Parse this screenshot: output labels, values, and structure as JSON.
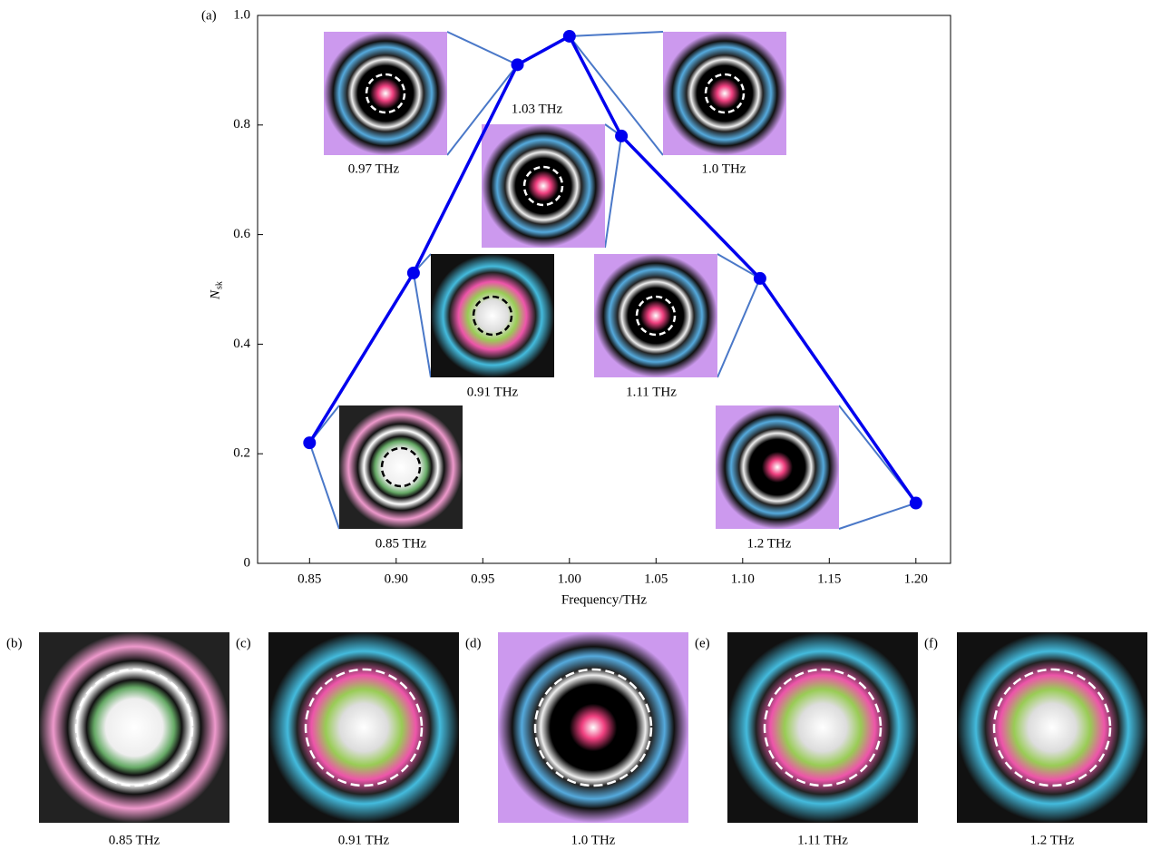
{
  "chart_data": {
    "type": "line",
    "panel_label": "(a)",
    "x_label": "Frequency/THz",
    "y_label": "N",
    "y_label_sub": "sk",
    "x": [
      0.85,
      0.91,
      0.97,
      1.0,
      1.03,
      1.11,
      1.2
    ],
    "series": [
      {
        "color": "#0000ee",
        "values": [
          0.22,
          0.53,
          0.91,
          0.962,
          0.78,
          0.52,
          0.11
        ]
      }
    ],
    "xlim": [
      0.82,
      1.22
    ],
    "xticks": [
      0.85,
      {
        "value": 0.9,
        "label": "0.90"
      },
      0.95,
      {
        "value": 1.0,
        "label": "1.00"
      },
      1.05,
      {
        "value": 1.1,
        "label": "1.10"
      },
      1.15,
      {
        "value": 1.2,
        "label": "1.20"
      }
    ],
    "ylim": [
      0,
      1
    ],
    "yticks": [
      0,
      0.2,
      0.4,
      0.6,
      0.8,
      {
        "value": 1.0,
        "label": "1.0"
      }
    ],
    "insets": [
      {
        "label": "0.85 THz"
      },
      {
        "label": "0.91 THz"
      },
      {
        "label": "0.97 THz"
      },
      {
        "label": "1.0 THz"
      },
      {
        "label": "1.03 THz"
      },
      {
        "label": "1.11 THz"
      },
      {
        "label": "1.2 THz"
      }
    ]
  },
  "panels": [
    {
      "tag": "(b)",
      "label": "0.85 THz"
    },
    {
      "tag": "(c)",
      "label": "0.91 THz"
    },
    {
      "tag": "(d)",
      "label": "1.0 THz"
    },
    {
      "tag": "(e)",
      "label": "1.11 THz"
    },
    {
      "tag": "(f)",
      "label": "1.2 THz"
    }
  ]
}
